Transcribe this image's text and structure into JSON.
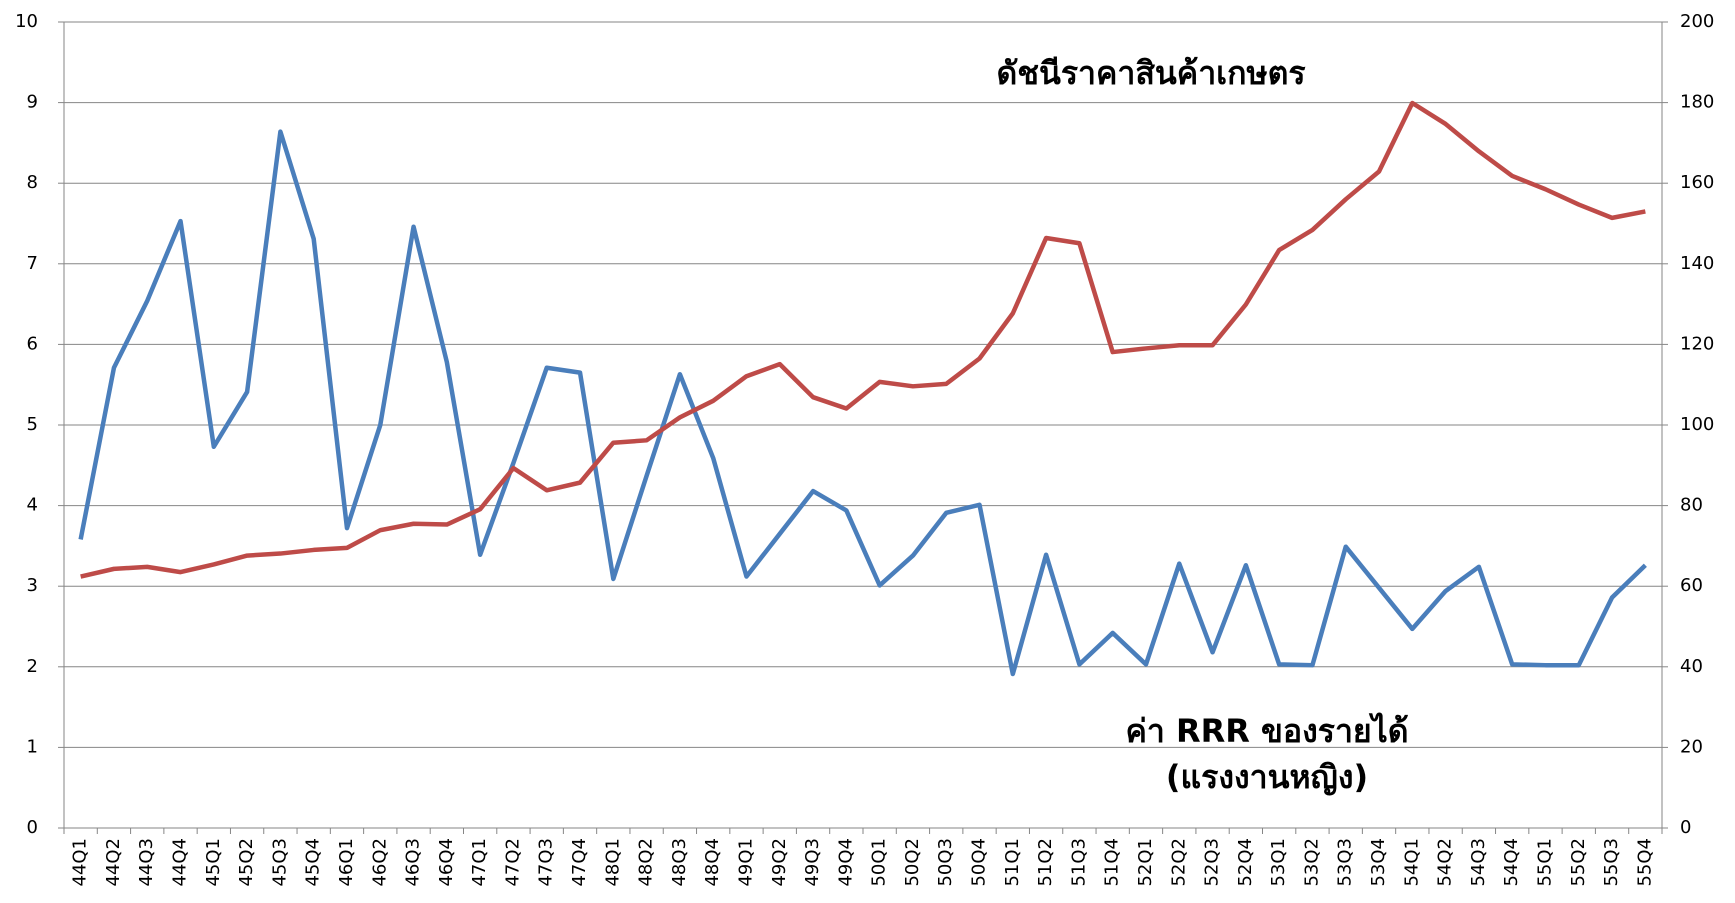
{
  "chart_data": {
    "type": "line",
    "annotations": [
      "ดัชนีราคาสินค้าเกษตร",
      "ค่า RRR ของรายได้",
      "(แรงงานหญิง)"
    ],
    "categories": [
      "44Q1",
      "44Q2",
      "44Q3",
      "44Q4",
      "45Q1",
      "45Q2",
      "45Q3",
      "45Q4",
      "46Q1",
      "46Q2",
      "46Q3",
      "46Q4",
      "47Q1",
      "47Q2",
      "47Q3",
      "47Q4",
      "48Q1",
      "48Q2",
      "48Q3",
      "48Q4",
      "49Q1",
      "49Q2",
      "49Q3",
      "49Q4",
      "50Q1",
      "50Q2",
      "50Q3",
      "50Q4",
      "51Q1",
      "51Q2",
      "51Q3",
      "51Q4",
      "52Q1",
      "52Q2",
      "52Q3",
      "52Q4",
      "53Q1",
      "53Q2",
      "53Q3",
      "53Q4",
      "54Q1",
      "54Q2",
      "54Q3",
      "54Q4",
      "55Q1",
      "55Q2",
      "55Q3",
      "55Q4"
    ],
    "series": [
      {
        "color": "#4a7ebb",
        "axis": "y",
        "values": [
          3.58,
          5.71,
          6.54,
          7.53,
          4.73,
          5.41,
          8.64,
          7.31,
          3.72,
          5.0,
          7.46,
          5.78,
          3.39,
          4.53,
          5.71,
          5.65,
          3.09,
          4.37,
          5.63,
          4.59,
          3.12,
          3.65,
          4.18,
          3.94,
          3.01,
          3.38,
          3.91,
          4.01,
          1.91,
          3.39,
          2.03,
          2.42,
          2.03,
          3.28,
          2.18,
          3.26,
          2.03,
          2.02,
          3.49,
          2.98,
          2.47,
          2.94,
          3.24,
          2.03,
          2.02,
          2.02,
          2.86,
          3.26
        ]
      },
      {
        "color": "#be4b48",
        "axis": "y2",
        "values": [
          62.4,
          64.3,
          64.8,
          63.5,
          65.4,
          67.6,
          68.1,
          69.0,
          69.5,
          73.9,
          75.5,
          75.3,
          79.1,
          89.3,
          83.8,
          85.7,
          95.6,
          96.2,
          101.9,
          106.0,
          112.1,
          115.1,
          106.9,
          104.1,
          110.7,
          109.6,
          110.2,
          116.5,
          127.7,
          146.4,
          145.1,
          118.1,
          119.0,
          119.8,
          119.8,
          129.9,
          143.4,
          148.4,
          156.0,
          162.9,
          179.9,
          174.7,
          167.9,
          161.8,
          158.5,
          154.7,
          151.4,
          153.0
        ]
      }
    ],
    "ylim": [
      0,
      10
    ],
    "yticks": [
      0,
      1,
      2,
      3,
      4,
      5,
      6,
      7,
      8,
      9,
      10
    ],
    "y2lim": [
      0,
      200
    ],
    "y2ticks": [
      0,
      20,
      40,
      60,
      80,
      100,
      120,
      140,
      160,
      180,
      200
    ],
    "grid": true
  }
}
